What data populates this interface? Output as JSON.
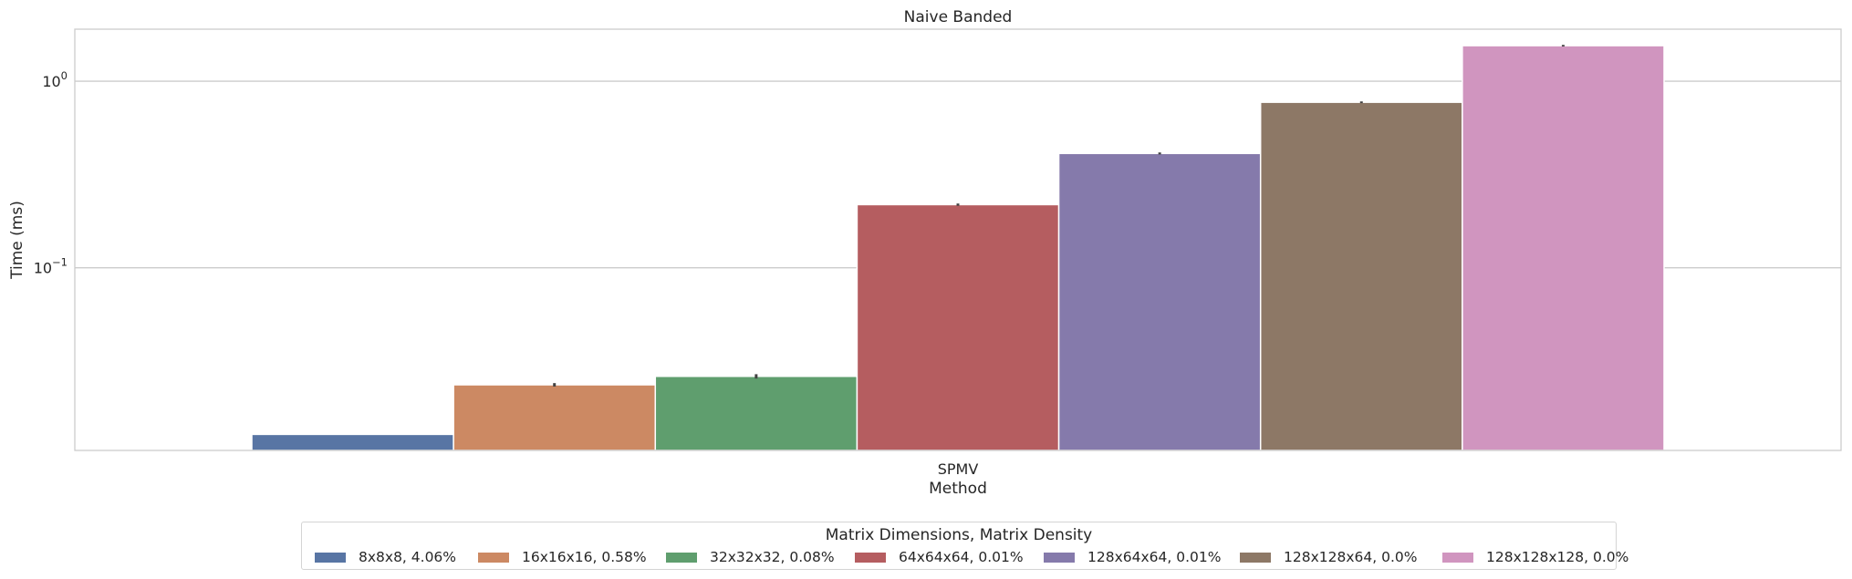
{
  "chart_data": {
    "type": "bar",
    "title": "Naive Banded",
    "xlabel": "Method",
    "ylabel": "Time (ms)",
    "yscale": "log",
    "ylim": [
      0.0105,
      1.9
    ],
    "grid": "horizontal",
    "categories": [
      "SPMV"
    ],
    "yticks": [
      {
        "value": 1.0,
        "base": "10",
        "exp": "0"
      },
      {
        "value": 0.1,
        "base": "10",
        "exp": "−1"
      }
    ],
    "series": [
      {
        "name": "8x8x8, 4.06%",
        "values": [
          0.0128
        ],
        "err": [
          0.0
        ],
        "color": "#5875a4"
      },
      {
        "name": "16x16x16, 0.58%",
        "values": [
          0.0236
        ],
        "err": [
          0.0005
        ],
        "color": "#cc8963"
      },
      {
        "name": "32x32x32, 0.08%",
        "values": [
          0.0262
        ],
        "err": [
          0.0007
        ],
        "color": "#5f9e6e"
      },
      {
        "name": "64x64x64, 0.01%",
        "values": [
          0.218
        ],
        "err": [
          0.003
        ],
        "color": "#b55d60"
      },
      {
        "name": "128x64x64, 0.01%",
        "values": [
          0.41
        ],
        "err": [
          0.005
        ],
        "color": "#857aab"
      },
      {
        "name": "128x128x64, 0.0%",
        "values": [
          0.771
        ],
        "err": [
          0.008
        ],
        "color": "#8d7866"
      },
      {
        "name": "128x128x128, 0.0%",
        "values": [
          1.55
        ],
        "err": [
          0.015
        ],
        "color": "#d095bf"
      }
    ],
    "legend": {
      "title": "Matrix Dimensions, Matrix Density",
      "placement": "bottom-center",
      "columns": 7
    }
  }
}
